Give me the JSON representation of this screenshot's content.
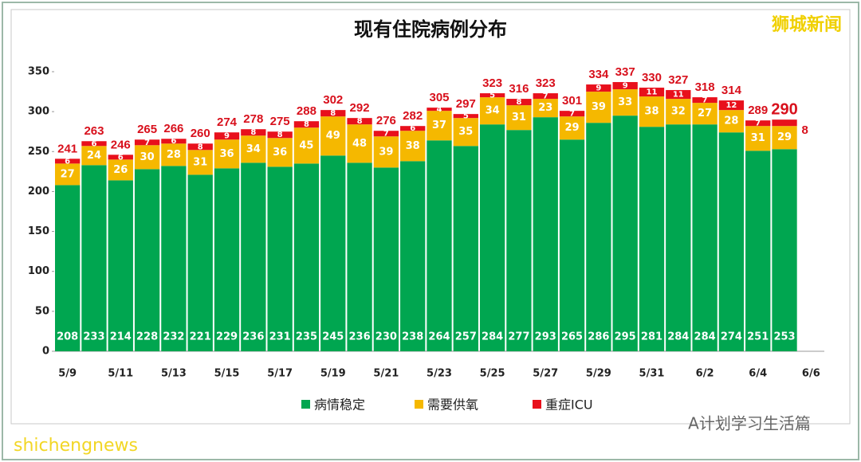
{
  "chart_data": {
    "type": "stacked-bar",
    "title": "现有住院病例分布",
    "categories": [
      "5/9",
      null,
      "5/11",
      null,
      "5/13",
      null,
      "5/15",
      null,
      "5/17",
      null,
      "5/19",
      null,
      "5/21",
      null,
      "5/23",
      null,
      "5/25",
      null,
      "5/27",
      null,
      "5/29",
      null,
      "5/31",
      null,
      "6/2",
      null,
      "6/4",
      null,
      "6/6"
    ],
    "series": [
      {
        "name": "病情稳定",
        "color": "#00a650",
        "values": [
          208,
          233,
          214,
          228,
          232,
          221,
          229,
          236,
          231,
          235,
          245,
          236,
          230,
          238,
          264,
          257,
          284,
          277,
          293,
          265,
          286,
          295,
          281,
          284,
          284,
          274,
          251,
          253,
          null
        ]
      },
      {
        "name": "需要供氧",
        "color": "#f5b800",
        "values": [
          27,
          24,
          26,
          30,
          28,
          31,
          36,
          34,
          36,
          45,
          49,
          48,
          39,
          38,
          37,
          35,
          34,
          31,
          23,
          29,
          39,
          33,
          38,
          32,
          27,
          28,
          31,
          29,
          null
        ]
      },
      {
        "name": "重症ICU",
        "color": "#e8101c",
        "values": [
          6,
          6,
          6,
          7,
          6,
          8,
          9,
          8,
          8,
          8,
          8,
          8,
          7,
          6,
          4,
          5,
          5,
          8,
          7,
          7,
          9,
          9,
          11,
          11,
          7,
          12,
          7,
          8,
          null
        ]
      }
    ],
    "totals": [
      241,
      263,
      246,
      265,
      266,
      260,
      274,
      278,
      275,
      288,
      302,
      292,
      276,
      282,
      305,
      297,
      323,
      316,
      323,
      301,
      334,
      337,
      330,
      327,
      318,
      314,
      289,
      290,
      null
    ],
    "ylim": [
      0,
      350
    ],
    "yticks": [
      0,
      50,
      100,
      150,
      200,
      250,
      300,
      350
    ],
    "grid": false,
    "legend": "bottom",
    "watermarks": [
      "狮城新闻",
      "A计划学习生活篇",
      "shichengnews"
    ]
  }
}
